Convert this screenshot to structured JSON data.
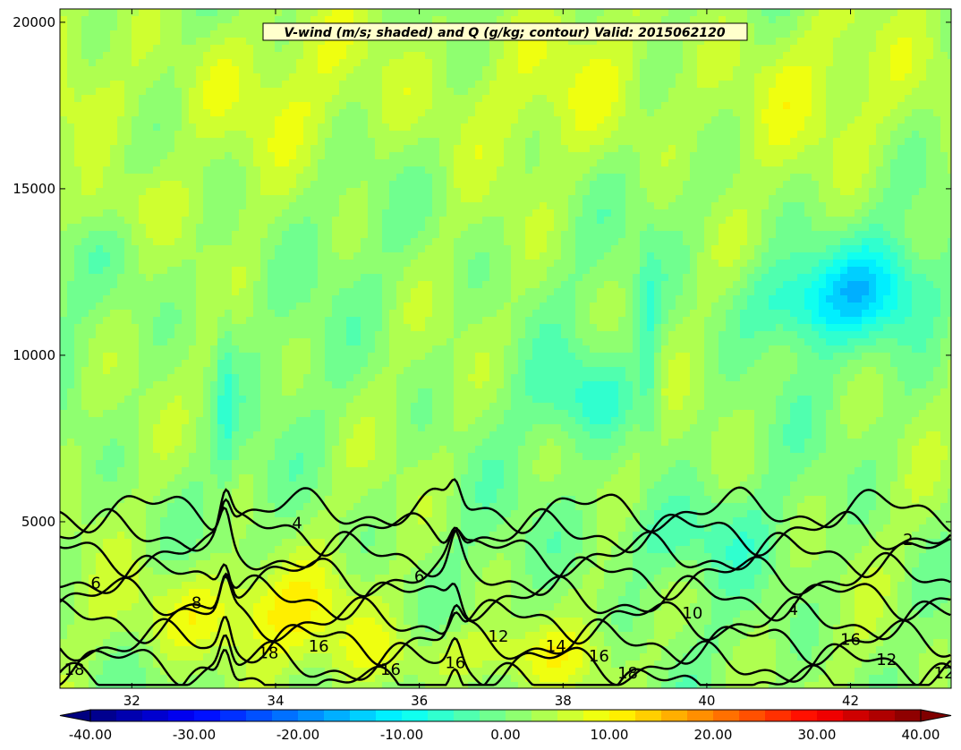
{
  "chart_data": {
    "type": "contour",
    "title": "V-wind (m/s; shaded) and Q (g/kg; contour) Valid: 2015062120",
    "xlim": [
      31,
      43.4
    ],
    "ylim": [
      0,
      20400
    ],
    "x_ticks": [
      32,
      34,
      36,
      38,
      40,
      42
    ],
    "x_tick_labels": [
      "32",
      "34",
      "36",
      "38",
      "40",
      "42"
    ],
    "y_ticks": [
      5000,
      10000,
      15000,
      20000
    ],
    "y_tick_labels": [
      "5000",
      "10000",
      "15000",
      "20000"
    ],
    "grid": false,
    "shaded_field": {
      "name": "V-wind (m/s)",
      "levels_min": -40,
      "levels_max": 40,
      "colorbar_ticks": [
        -40,
        -30,
        -20,
        -10,
        0,
        10,
        20,
        30,
        40
      ],
      "colorbar_tick_labels": [
        "-40.00",
        "-30.00",
        "-20.00",
        "-10.00",
        "0.00",
        "10.00",
        "20.00",
        "30.00",
        "40.00"
      ],
      "colorbar_extend": "both",
      "colormap": "jet"
    },
    "contour_field": {
      "name": "Q (g/kg)",
      "levels": [
        2,
        4,
        6,
        8,
        10,
        12,
        14,
        16,
        18
      ],
      "line_color": "#000000",
      "labels": [
        {
          "text": "2",
          "x": 42.8,
          "y": 4300
        },
        {
          "text": "4",
          "x": 34.3,
          "y": 4800
        },
        {
          "text": "6",
          "x": 31.5,
          "y": 3000
        },
        {
          "text": "6",
          "x": 36.0,
          "y": 3200
        },
        {
          "text": "8",
          "x": 32.9,
          "y": 2400
        },
        {
          "text": "10",
          "x": 39.8,
          "y": 2100
        },
        {
          "text": "4",
          "x": 41.2,
          "y": 2200
        },
        {
          "text": "12",
          "x": 37.1,
          "y": 1400
        },
        {
          "text": "14",
          "x": 37.9,
          "y": 1100
        },
        {
          "text": "16",
          "x": 34.6,
          "y": 1100
        },
        {
          "text": "18",
          "x": 33.9,
          "y": 900
        },
        {
          "text": "16",
          "x": 36.5,
          "y": 600
        },
        {
          "text": "16",
          "x": 35.6,
          "y": 400
        },
        {
          "text": "16",
          "x": 38.5,
          "y": 800
        },
        {
          "text": "18",
          "x": 38.9,
          "y": 300
        },
        {
          "text": "18",
          "x": 31.2,
          "y": 400
        },
        {
          "text": "16",
          "x": 42.0,
          "y": 1300
        },
        {
          "text": "12",
          "x": 42.5,
          "y": 700
        },
        {
          "text": "12",
          "x": 43.3,
          "y": 300
        }
      ]
    },
    "annotations": []
  }
}
